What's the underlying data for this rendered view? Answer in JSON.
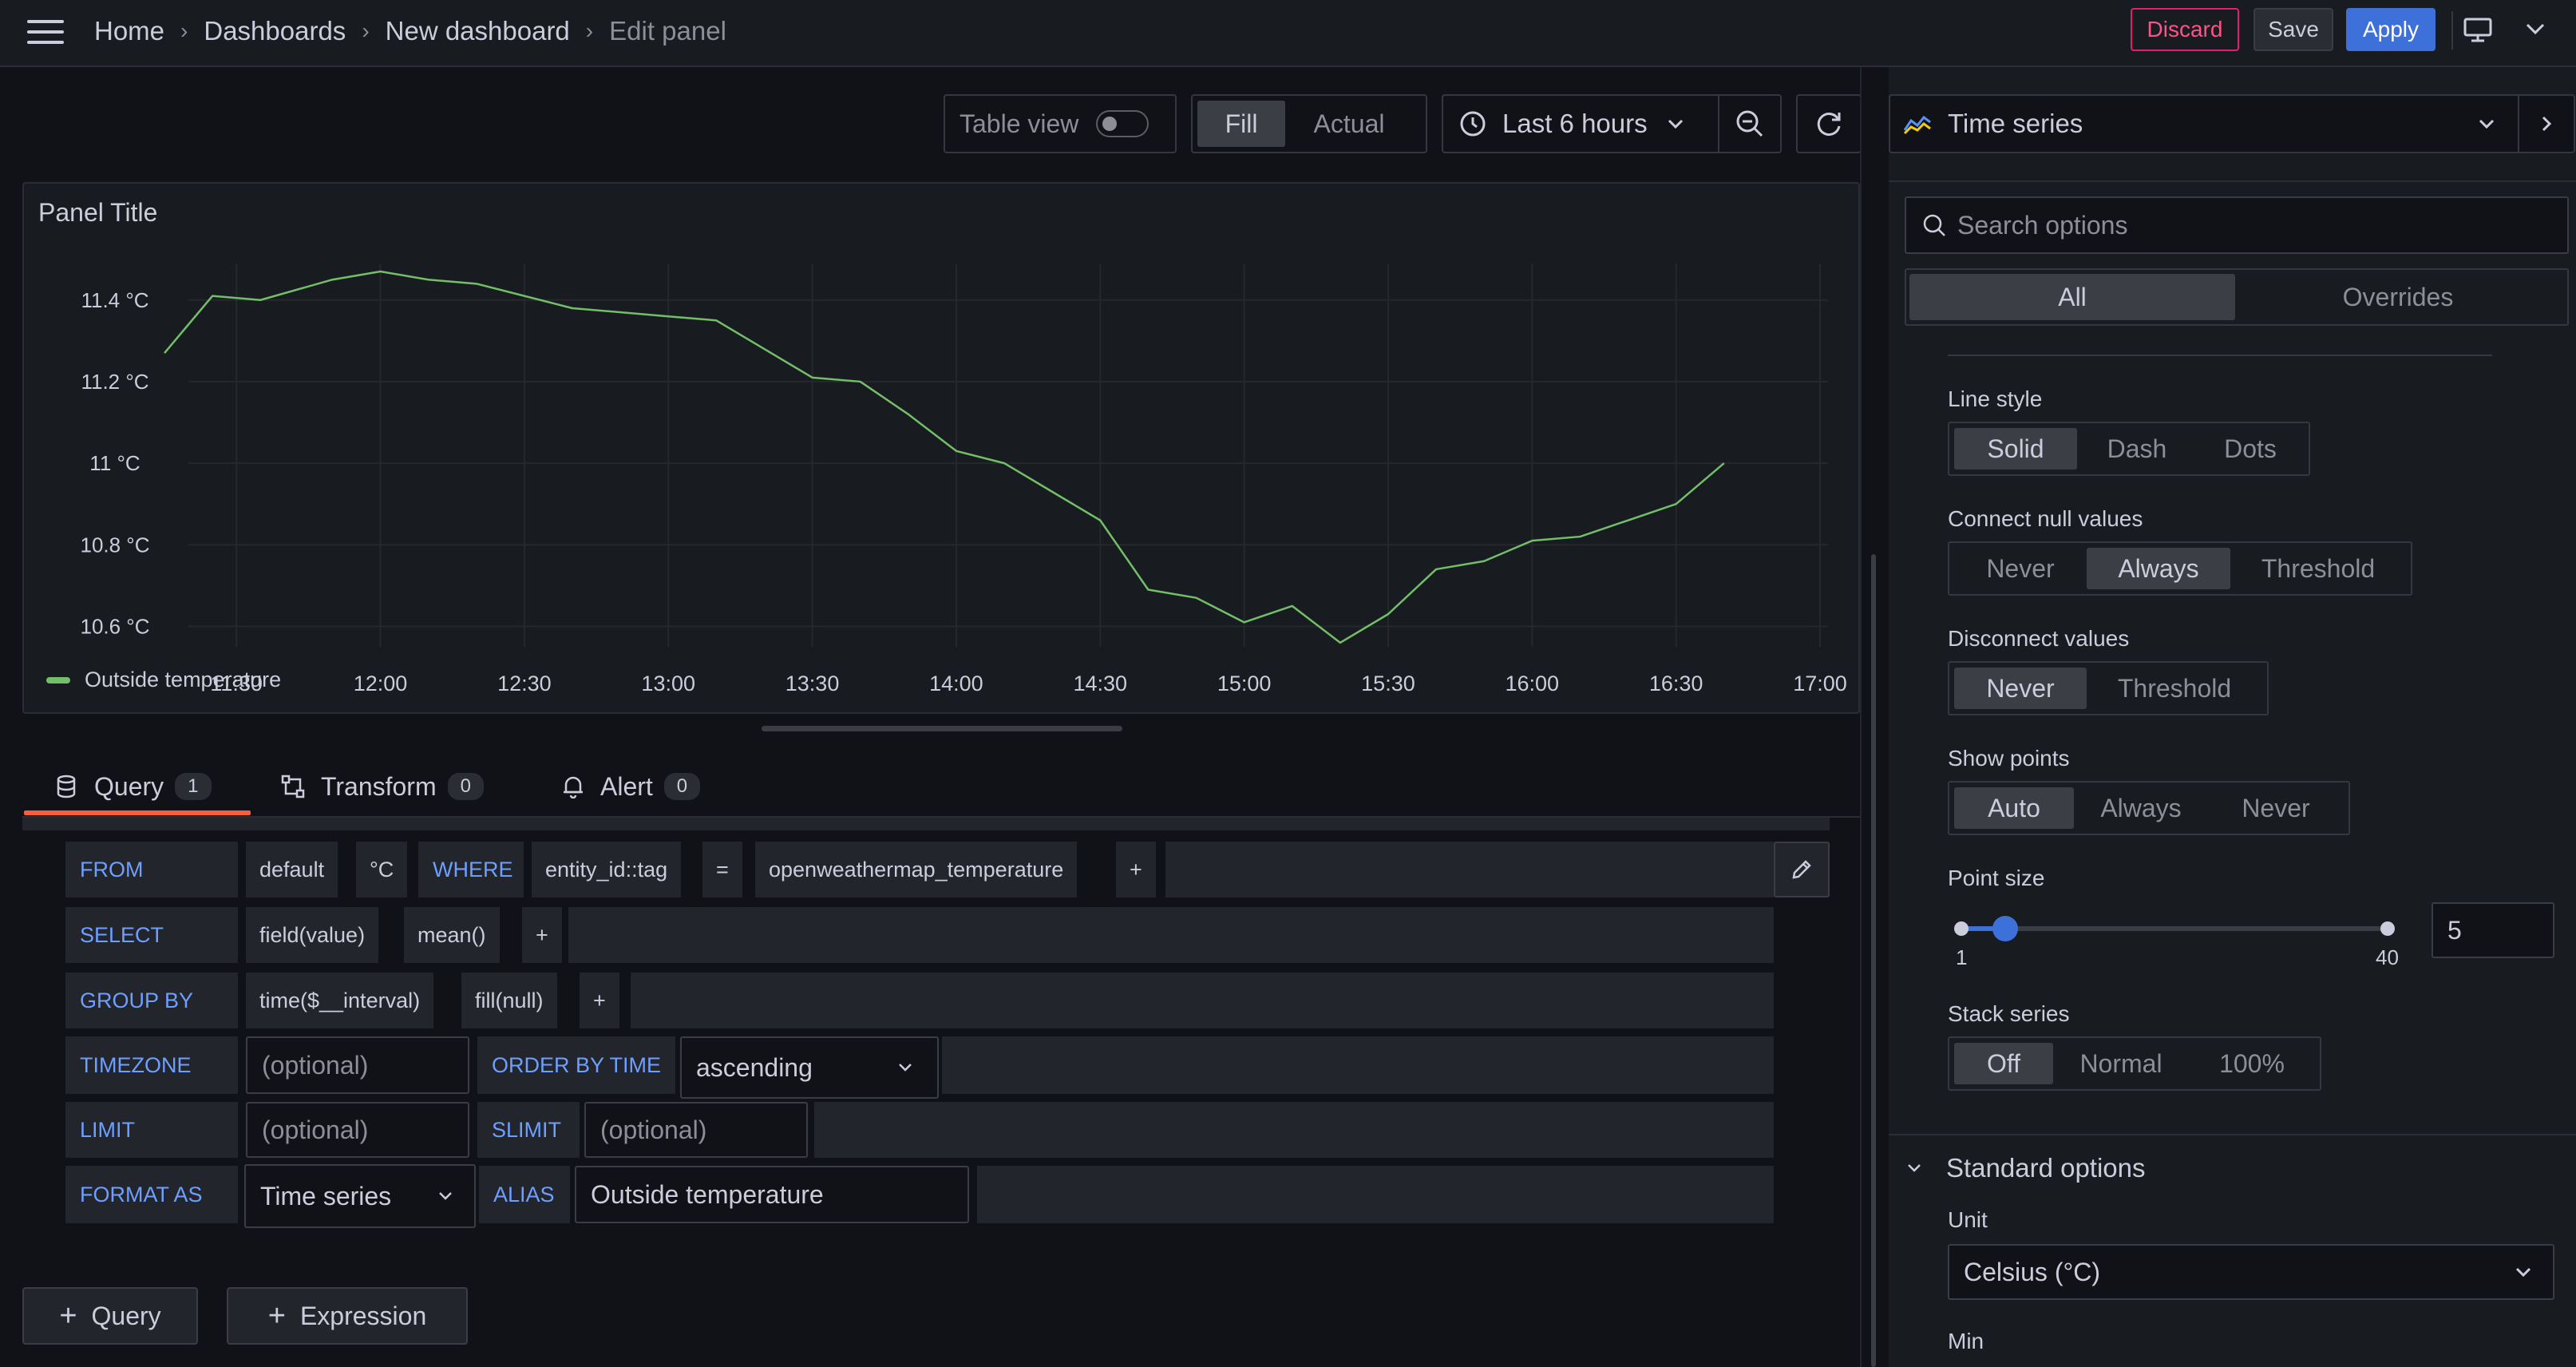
{
  "breadcrumbs": [
    "Home",
    "Dashboards",
    "New dashboard",
    "Edit panel"
  ],
  "topbar": {
    "discard": "Discard",
    "save": "Save",
    "apply": "Apply"
  },
  "toolbar": {
    "table_view": "Table view",
    "table_view_on": false,
    "fill": "Fill",
    "actual": "Actual",
    "time_range": "Last 6 hours"
  },
  "panel": {
    "title": "Panel Title",
    "legend": "Outside temperature"
  },
  "chart_data": {
    "type": "line",
    "title": "Panel Title",
    "x_ticks": [
      "11:30",
      "12:00",
      "12:30",
      "13:00",
      "13:30",
      "14:00",
      "14:30",
      "15:00",
      "15:30",
      "16:00",
      "16:30",
      "17:00"
    ],
    "y_ticks": [
      "11.4 °C",
      "11.2 °C",
      "11 °C",
      "10.8 °C",
      "10.6 °C"
    ],
    "ylim": [
      10.55,
      11.47
    ],
    "xlim": [
      "11:15",
      "17:00"
    ],
    "grid": true,
    "legend_position": "bottom-left",
    "series": [
      {
        "name": "Outside temperature",
        "color": "#73bf69",
        "x": [
          "11:15",
          "11:25",
          "11:35",
          "11:50",
          "12:00",
          "12:10",
          "12:20",
          "12:40",
          "13:00",
          "13:10",
          "13:20",
          "13:30",
          "13:40",
          "13:50",
          "14:00",
          "14:10",
          "14:20",
          "14:30",
          "14:40",
          "14:50",
          "15:00",
          "15:10",
          "15:20",
          "15:30",
          "15:40",
          "15:50",
          "16:00",
          "16:10",
          "16:20",
          "16:30",
          "16:40"
        ],
        "y": [
          11.27,
          11.41,
          11.4,
          11.45,
          11.47,
          11.45,
          11.44,
          11.38,
          11.36,
          11.35,
          11.28,
          11.21,
          11.2,
          11.12,
          11.03,
          11.0,
          10.93,
          10.86,
          10.69,
          10.67,
          10.61,
          10.65,
          10.56,
          10.63,
          10.74,
          10.76,
          10.81,
          10.82,
          10.86,
          10.9,
          11.0
        ]
      }
    ]
  },
  "tabs": [
    {
      "label": "Query",
      "count": "1"
    },
    {
      "label": "Transform",
      "count": "0"
    },
    {
      "label": "Alert",
      "count": "0"
    }
  ],
  "query": {
    "from_kw": "FROM",
    "from_default": "default",
    "from_measure": "°C",
    "where_kw": "WHERE",
    "where_key": "entity_id::tag",
    "where_op": "=",
    "where_val": "openweathermap_temperature",
    "plus": "+",
    "select_kw": "SELECT",
    "select_field": "field(value)",
    "select_fn": "mean()",
    "groupby_kw": "GROUP BY",
    "groupby_time": "time($__interval)",
    "groupby_fill": "fill(null)",
    "timezone_kw": "TIMEZONE",
    "optional_ph": "(optional)",
    "orderby_kw": "ORDER BY TIME",
    "orderby_val": "ascending",
    "limit_kw": "LIMIT",
    "slimit_kw": "SLIMIT",
    "format_kw": "FORMAT AS",
    "format_val": "Time series",
    "alias_kw": "ALIAS",
    "alias_val": "Outside temperature"
  },
  "add": {
    "query": "Query",
    "expression": "Expression"
  },
  "options": {
    "viz": "Time series",
    "search_placeholder": "Search options",
    "tab_all": "All",
    "tab_overrides": "Overrides",
    "line_style": {
      "label": "Line style",
      "options": [
        "Solid",
        "Dash",
        "Dots"
      ],
      "selected": "Solid"
    },
    "connect_null": {
      "label": "Connect null values",
      "options": [
        "Never",
        "Always",
        "Threshold"
      ],
      "selected": "Always"
    },
    "disconnect": {
      "label": "Disconnect values",
      "options": [
        "Never",
        "Threshold"
      ],
      "selected": "Never"
    },
    "show_points": {
      "label": "Show points",
      "options": [
        "Auto",
        "Always",
        "Never"
      ],
      "selected": "Auto"
    },
    "point_size": {
      "label": "Point size",
      "min": "1",
      "max": "40",
      "value": "5"
    },
    "stack": {
      "label": "Stack series",
      "options": [
        "Off",
        "Normal",
        "100%"
      ],
      "selected": "Off"
    },
    "standard_options": "Standard options",
    "unit_label": "Unit",
    "unit_value": "Celsius (°C)",
    "min_label": "Min"
  },
  "colors": {
    "accent": "#3d71d9",
    "line": "#73bf69",
    "discard": "#e0226e",
    "keyword": "#6e9fff",
    "tab_active": "#f55f3e"
  }
}
